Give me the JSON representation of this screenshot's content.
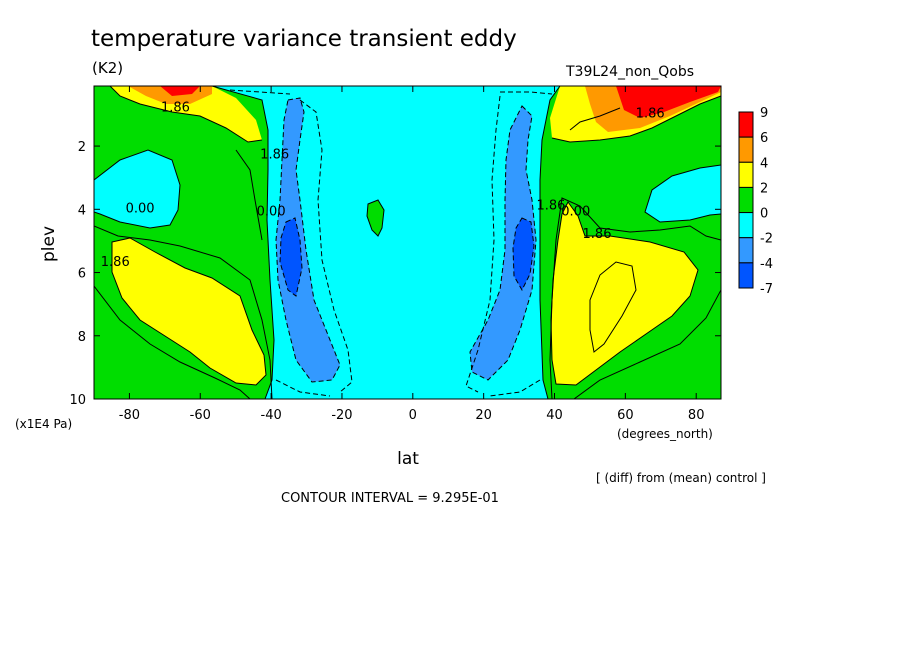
{
  "chart_data": {
    "type": "heatmap",
    "title": "temperature variance transient eddy",
    "units": "(K2)",
    "experiment": "T39L24_non_Qobs",
    "xlabel": "lat",
    "x_unit": "(degrees_north)",
    "ylabel": "plev",
    "y_unit": "(x1E4 Pa)",
    "diff_note": "[ (diff) from (mean) control ]",
    "contour_interval": "CONTOUR INTERVAL = 9.295E-01",
    "xlim": [
      -90,
      87
    ],
    "ylim": [
      10,
      0.1
    ],
    "x_ticks": [
      -80,
      -60,
      -40,
      -20,
      0,
      20,
      40,
      60,
      80
    ],
    "x_tick_labels": [
      "-80",
      "-60",
      "-40",
      "-20",
      "0",
      "20",
      "40",
      "60",
      "80"
    ],
    "y_ticks": [
      2,
      4,
      6,
      8,
      10
    ],
    "y_tick_labels": [
      "2",
      "4",
      "6",
      "8",
      "10"
    ],
    "colorbar": {
      "levels": [
        "9",
        "6",
        "4",
        "2",
        "0",
        "-2",
        "-4",
        "-7"
      ],
      "colors": [
        "#ff0000",
        "#ff9900",
        "#ffff00",
        "#00dd00",
        "#00ffff",
        "#3399ff",
        "#0055ff"
      ]
    },
    "contour_labels": [
      {
        "text": "1.86",
        "lat": -67,
        "plev": 0.9
      },
      {
        "text": "1.86",
        "lat": -39,
        "plev": 2.4
      },
      {
        "text": "0.00",
        "lat": -40,
        "plev": 4.2
      },
      {
        "text": "0.00",
        "lat": -77,
        "plev": 4.1
      },
      {
        "text": "1.86",
        "lat": -84,
        "plev": 5.8
      },
      {
        "text": "1.86",
        "lat": 39,
        "plev": 4.0
      },
      {
        "text": "0.00",
        "lat": 46,
        "plev": 4.2
      },
      {
        "text": "1.86",
        "lat": 52,
        "plev": 4.9
      },
      {
        "text": "1.86",
        "lat": 67,
        "plev": 1.1
      }
    ]
  }
}
